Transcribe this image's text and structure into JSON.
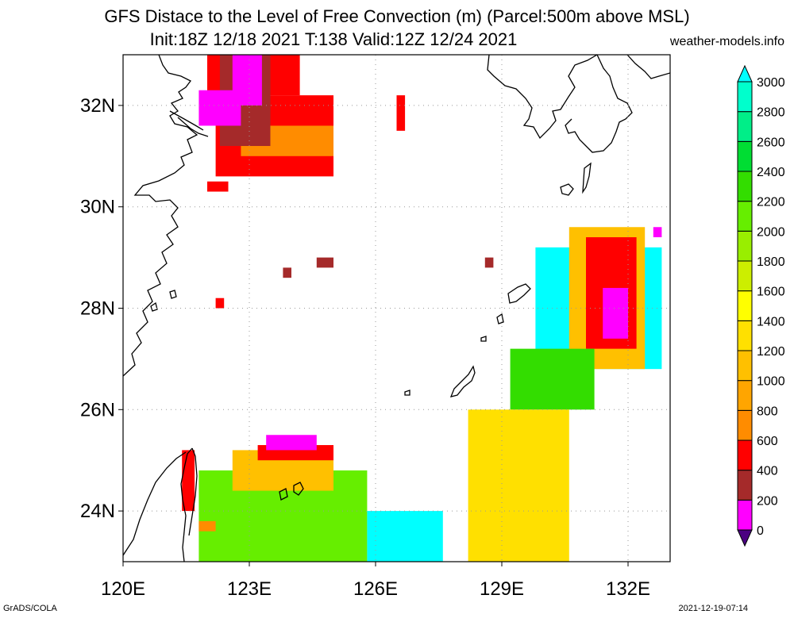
{
  "header": {
    "title": "GFS Distace to the Level of Free Convection (m) (Parcel:500m above MSL)",
    "subtitle": "Init:18Z 12/18 2021 T:138 Valid:12Z 12/24 2021",
    "site": "weather-models.info"
  },
  "footer": {
    "credit": "GrADS/COLA",
    "timestamp": "2021-12-19-07:14"
  },
  "map": {
    "lon_range": [
      120,
      133
    ],
    "lat_range": [
      23,
      33
    ],
    "lon_ticks": [
      120,
      123,
      126,
      129,
      132
    ],
    "lat_ticks": [
      24,
      26,
      28,
      30,
      32
    ],
    "lon_labels": [
      "120E",
      "123E",
      "126E",
      "129E",
      "132E"
    ],
    "lat_labels": [
      "24N",
      "26N",
      "28N",
      "30N",
      "32N"
    ],
    "grid": true
  },
  "colorbar": {
    "levels": [
      0,
      200,
      400,
      600,
      800,
      1000,
      1200,
      1400,
      1600,
      1800,
      2000,
      2200,
      2400,
      2600,
      2800,
      3000
    ],
    "labels": [
      "0",
      "200",
      "400",
      "600",
      "800",
      "1000",
      "1200",
      "1400",
      "1600",
      "1800",
      "2000",
      "2200",
      "2400",
      "2600",
      "2800",
      "3000"
    ],
    "colors": [
      "#4b0082",
      "#ff00ff",
      "#a52a2a",
      "#ff0000",
      "#ff8c00",
      "#ffa500",
      "#ffc000",
      "#ffe000",
      "#ffff00",
      "#ccee00",
      "#99ee00",
      "#66ee00",
      "#33dd00",
      "#00dd33",
      "#00ee88",
      "#00ffcc",
      "#00ffff"
    ]
  },
  "chart_data": {
    "type": "heatmap",
    "units": "m",
    "regions": [
      {
        "lon": [
          122.0,
          124.2
        ],
        "lat": [
          32.2,
          33.0
        ],
        "level": 400
      },
      {
        "lon": [
          122.2,
          125.0
        ],
        "lat": [
          30.6,
          32.2
        ],
        "level": 400
      },
      {
        "lon": [
          122.8,
          125.0
        ],
        "lat": [
          31.0,
          31.6
        ],
        "level": 600
      },
      {
        "lon": [
          122.3,
          123.5
        ],
        "lat": [
          31.2,
          33.0
        ],
        "level": 200
      },
      {
        "lon": [
          121.8,
          122.8
        ],
        "lat": [
          31.6,
          32.3
        ],
        "level": 0
      },
      {
        "lon": [
          122.6,
          123.3
        ],
        "lat": [
          32.0,
          33.0
        ],
        "level": 0
      },
      {
        "lon": [
          122.0,
          122.5
        ],
        "lat": [
          30.3,
          30.5
        ],
        "level": 400
      },
      {
        "lon": [
          126.5,
          126.7
        ],
        "lat": [
          31.5,
          32.2
        ],
        "level": 400
      },
      {
        "lon": [
          124.6,
          125.0
        ],
        "lat": [
          28.8,
          29.0
        ],
        "level": 200
      },
      {
        "lon": [
          123.8,
          124.0
        ],
        "lat": [
          28.6,
          28.8
        ],
        "level": 200
      },
      {
        "lon": [
          122.2,
          122.4
        ],
        "lat": [
          28.0,
          28.2
        ],
        "level": 400
      },
      {
        "lon": [
          128.6,
          128.8
        ],
        "lat": [
          28.8,
          29.0
        ],
        "level": 200
      },
      {
        "lon": [
          121.8,
          125.8
        ],
        "lat": [
          23.0,
          24.8
        ],
        "level": 2000
      },
      {
        "lon": [
          122.6,
          125.0
        ],
        "lat": [
          24.4,
          25.2
        ],
        "level": 1000
      },
      {
        "lon": [
          123.2,
          125.0
        ],
        "lat": [
          25.0,
          25.3
        ],
        "level": 400
      },
      {
        "lon": [
          123.4,
          124.6
        ],
        "lat": [
          25.2,
          25.5
        ],
        "level": 0
      },
      {
        "lon": [
          121.4,
          121.7
        ],
        "lat": [
          24.0,
          25.2
        ],
        "level": 400
      },
      {
        "lon": [
          121.8,
          122.2
        ],
        "lat": [
          23.6,
          23.8
        ],
        "level": 600
      },
      {
        "lon": [
          125.8,
          127.6
        ],
        "lat": [
          23.0,
          24.0
        ],
        "level": 3000
      },
      {
        "lon": [
          129.8,
          132.8
        ],
        "lat": [
          26.8,
          29.2
        ],
        "level": 3000
      },
      {
        "lon": [
          130.6,
          132.4
        ],
        "lat": [
          26.8,
          29.6
        ],
        "level": 1000
      },
      {
        "lon": [
          131.0,
          132.2
        ],
        "lat": [
          27.2,
          29.4
        ],
        "level": 400
      },
      {
        "lon": [
          131.4,
          132.0
        ],
        "lat": [
          27.4,
          28.4
        ],
        "level": 0
      },
      {
        "lon": [
          129.2,
          131.2
        ],
        "lat": [
          26.0,
          27.2
        ],
        "level": 2200
      },
      {
        "lon": [
          128.2,
          130.6
        ],
        "lat": [
          23.0,
          26.0
        ],
        "level": 1200
      },
      {
        "lon": [
          132.6,
          132.8
        ],
        "lat": [
          29.4,
          29.6
        ],
        "level": 0
      }
    ]
  }
}
